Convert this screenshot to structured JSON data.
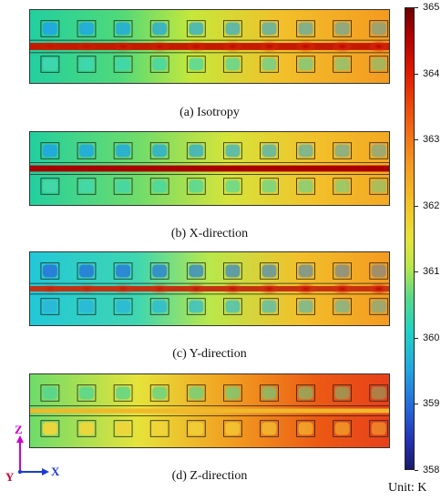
{
  "panels": [
    {
      "id": "isotropy",
      "caption": "(a) Isotropy",
      "line": "isotropy",
      "bg": [
        [
          0,
          "#22cfa0"
        ],
        [
          0.25,
          "#4fd97a"
        ],
        [
          0.45,
          "#c6e83a"
        ],
        [
          0.7,
          "#f2c02a"
        ],
        [
          1,
          "#f49a20"
        ]
      ],
      "cell_top": "#22a8e0",
      "cell_bottom": "#3fd6b0"
    },
    {
      "id": "x-direction",
      "caption": "(b) X-direction",
      "line": "x",
      "bg": [
        [
          0,
          "#22cfa0"
        ],
        [
          0.3,
          "#6fdc6a"
        ],
        [
          0.55,
          "#d6e43a"
        ],
        [
          0.8,
          "#f2c02a"
        ],
        [
          1,
          "#f4a822"
        ]
      ],
      "cell_top": "#22a8e0",
      "cell_bottom": "#44d6a8"
    },
    {
      "id": "y-direction",
      "caption": "(c) Y-direction",
      "line": "y",
      "bg": [
        [
          0,
          "#21c8d8"
        ],
        [
          0.3,
          "#3fd6b0"
        ],
        [
          0.5,
          "#b9e84a"
        ],
        [
          0.75,
          "#f2c02a"
        ],
        [
          1,
          "#f49a20"
        ]
      ],
      "cell_top": "#2a7ad8",
      "cell_bottom": "#2ab8d8"
    },
    {
      "id": "z-direction",
      "caption": "(d) Z-direction",
      "line": "z",
      "bg": [
        [
          0,
          "#6edc6a"
        ],
        [
          0.3,
          "#e6e33a"
        ],
        [
          0.55,
          "#f2a020"
        ],
        [
          0.8,
          "#ec5a14"
        ],
        [
          1,
          "#e8401a"
        ]
      ],
      "cell_top": "#5ad68c",
      "cell_bottom": "#f2d43a"
    }
  ],
  "colorbar": {
    "min": 358,
    "max": 365,
    "ticks": [
      "365",
      "364",
      "363",
      "362",
      "361",
      "360",
      "359",
      "358"
    ]
  },
  "unit_label": "Unit: K",
  "axes": {
    "z": "Z",
    "x": "X",
    "y": "Y",
    "z_color": "#cc00cc",
    "x_color": "#1a3ad8",
    "y_color": "#cc0033"
  }
}
